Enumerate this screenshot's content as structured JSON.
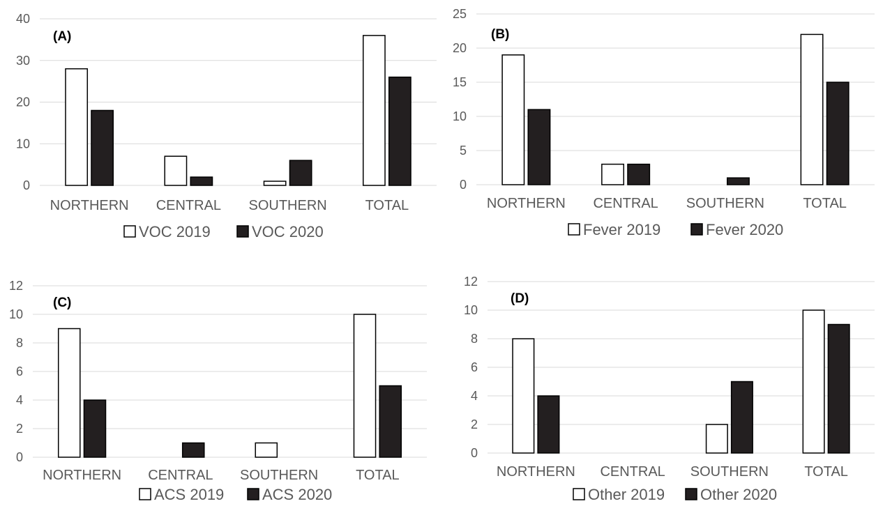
{
  "chart_data": [
    {
      "type": "bar",
      "title": "(A)",
      "categories": [
        "NORTHERN",
        "CENTRAL",
        "SOUTHERN",
        "TOTAL"
      ],
      "series": [
        {
          "name": "VOC 2019",
          "values": [
            28,
            7,
            1,
            36
          ],
          "color": "#ffffff"
        },
        {
          "name": "VOC 2020",
          "values": [
            18,
            2,
            6,
            26
          ],
          "color": "#231f20"
        }
      ],
      "yticks": [
        0,
        10,
        20,
        30,
        40
      ],
      "ylim": [
        0,
        40
      ],
      "grid": true,
      "legend": "bottom"
    },
    {
      "type": "bar",
      "title": "(B)",
      "categories": [
        "NORTHERN",
        "CENTRAL",
        "SOUTHERN",
        "TOTAL"
      ],
      "series": [
        {
          "name": "Fever 2019",
          "values": [
            19,
            3,
            0,
            22
          ],
          "color": "#ffffff"
        },
        {
          "name": "Fever 2020",
          "values": [
            11,
            3,
            1,
            15
          ],
          "color": "#231f20"
        }
      ],
      "yticks": [
        0,
        5,
        10,
        15,
        20,
        25
      ],
      "ylim": [
        0,
        25
      ],
      "grid": true,
      "legend": "bottom"
    },
    {
      "type": "bar",
      "title": "(C)",
      "categories": [
        "NORTHERN",
        "CENTRAL",
        "SOUTHERN",
        "TOTAL"
      ],
      "series": [
        {
          "name": "ACS 2019",
          "values": [
            9,
            0,
            1,
            10
          ],
          "color": "#ffffff"
        },
        {
          "name": "ACS 2020",
          "values": [
            4,
            1,
            0,
            5
          ],
          "color": "#231f20"
        }
      ],
      "yticks": [
        0,
        2,
        4,
        6,
        8,
        10,
        12
      ],
      "ylim": [
        0,
        12
      ],
      "grid": true,
      "legend": "bottom"
    },
    {
      "type": "bar",
      "title": "(D)",
      "categories": [
        "NORTHERN",
        "CENTRAL",
        "SOUTHERN",
        "TOTAL"
      ],
      "series": [
        {
          "name": "Other 2019",
          "values": [
            8,
            0,
            2,
            10
          ],
          "color": "#ffffff"
        },
        {
          "name": "Other 2020",
          "values": [
            4,
            0,
            5,
            9
          ],
          "color": "#231f20"
        }
      ],
      "yticks": [
        0,
        2,
        4,
        6,
        8,
        10,
        12
      ],
      "ylim": [
        0,
        12
      ],
      "grid": true,
      "legend": "bottom"
    }
  ]
}
